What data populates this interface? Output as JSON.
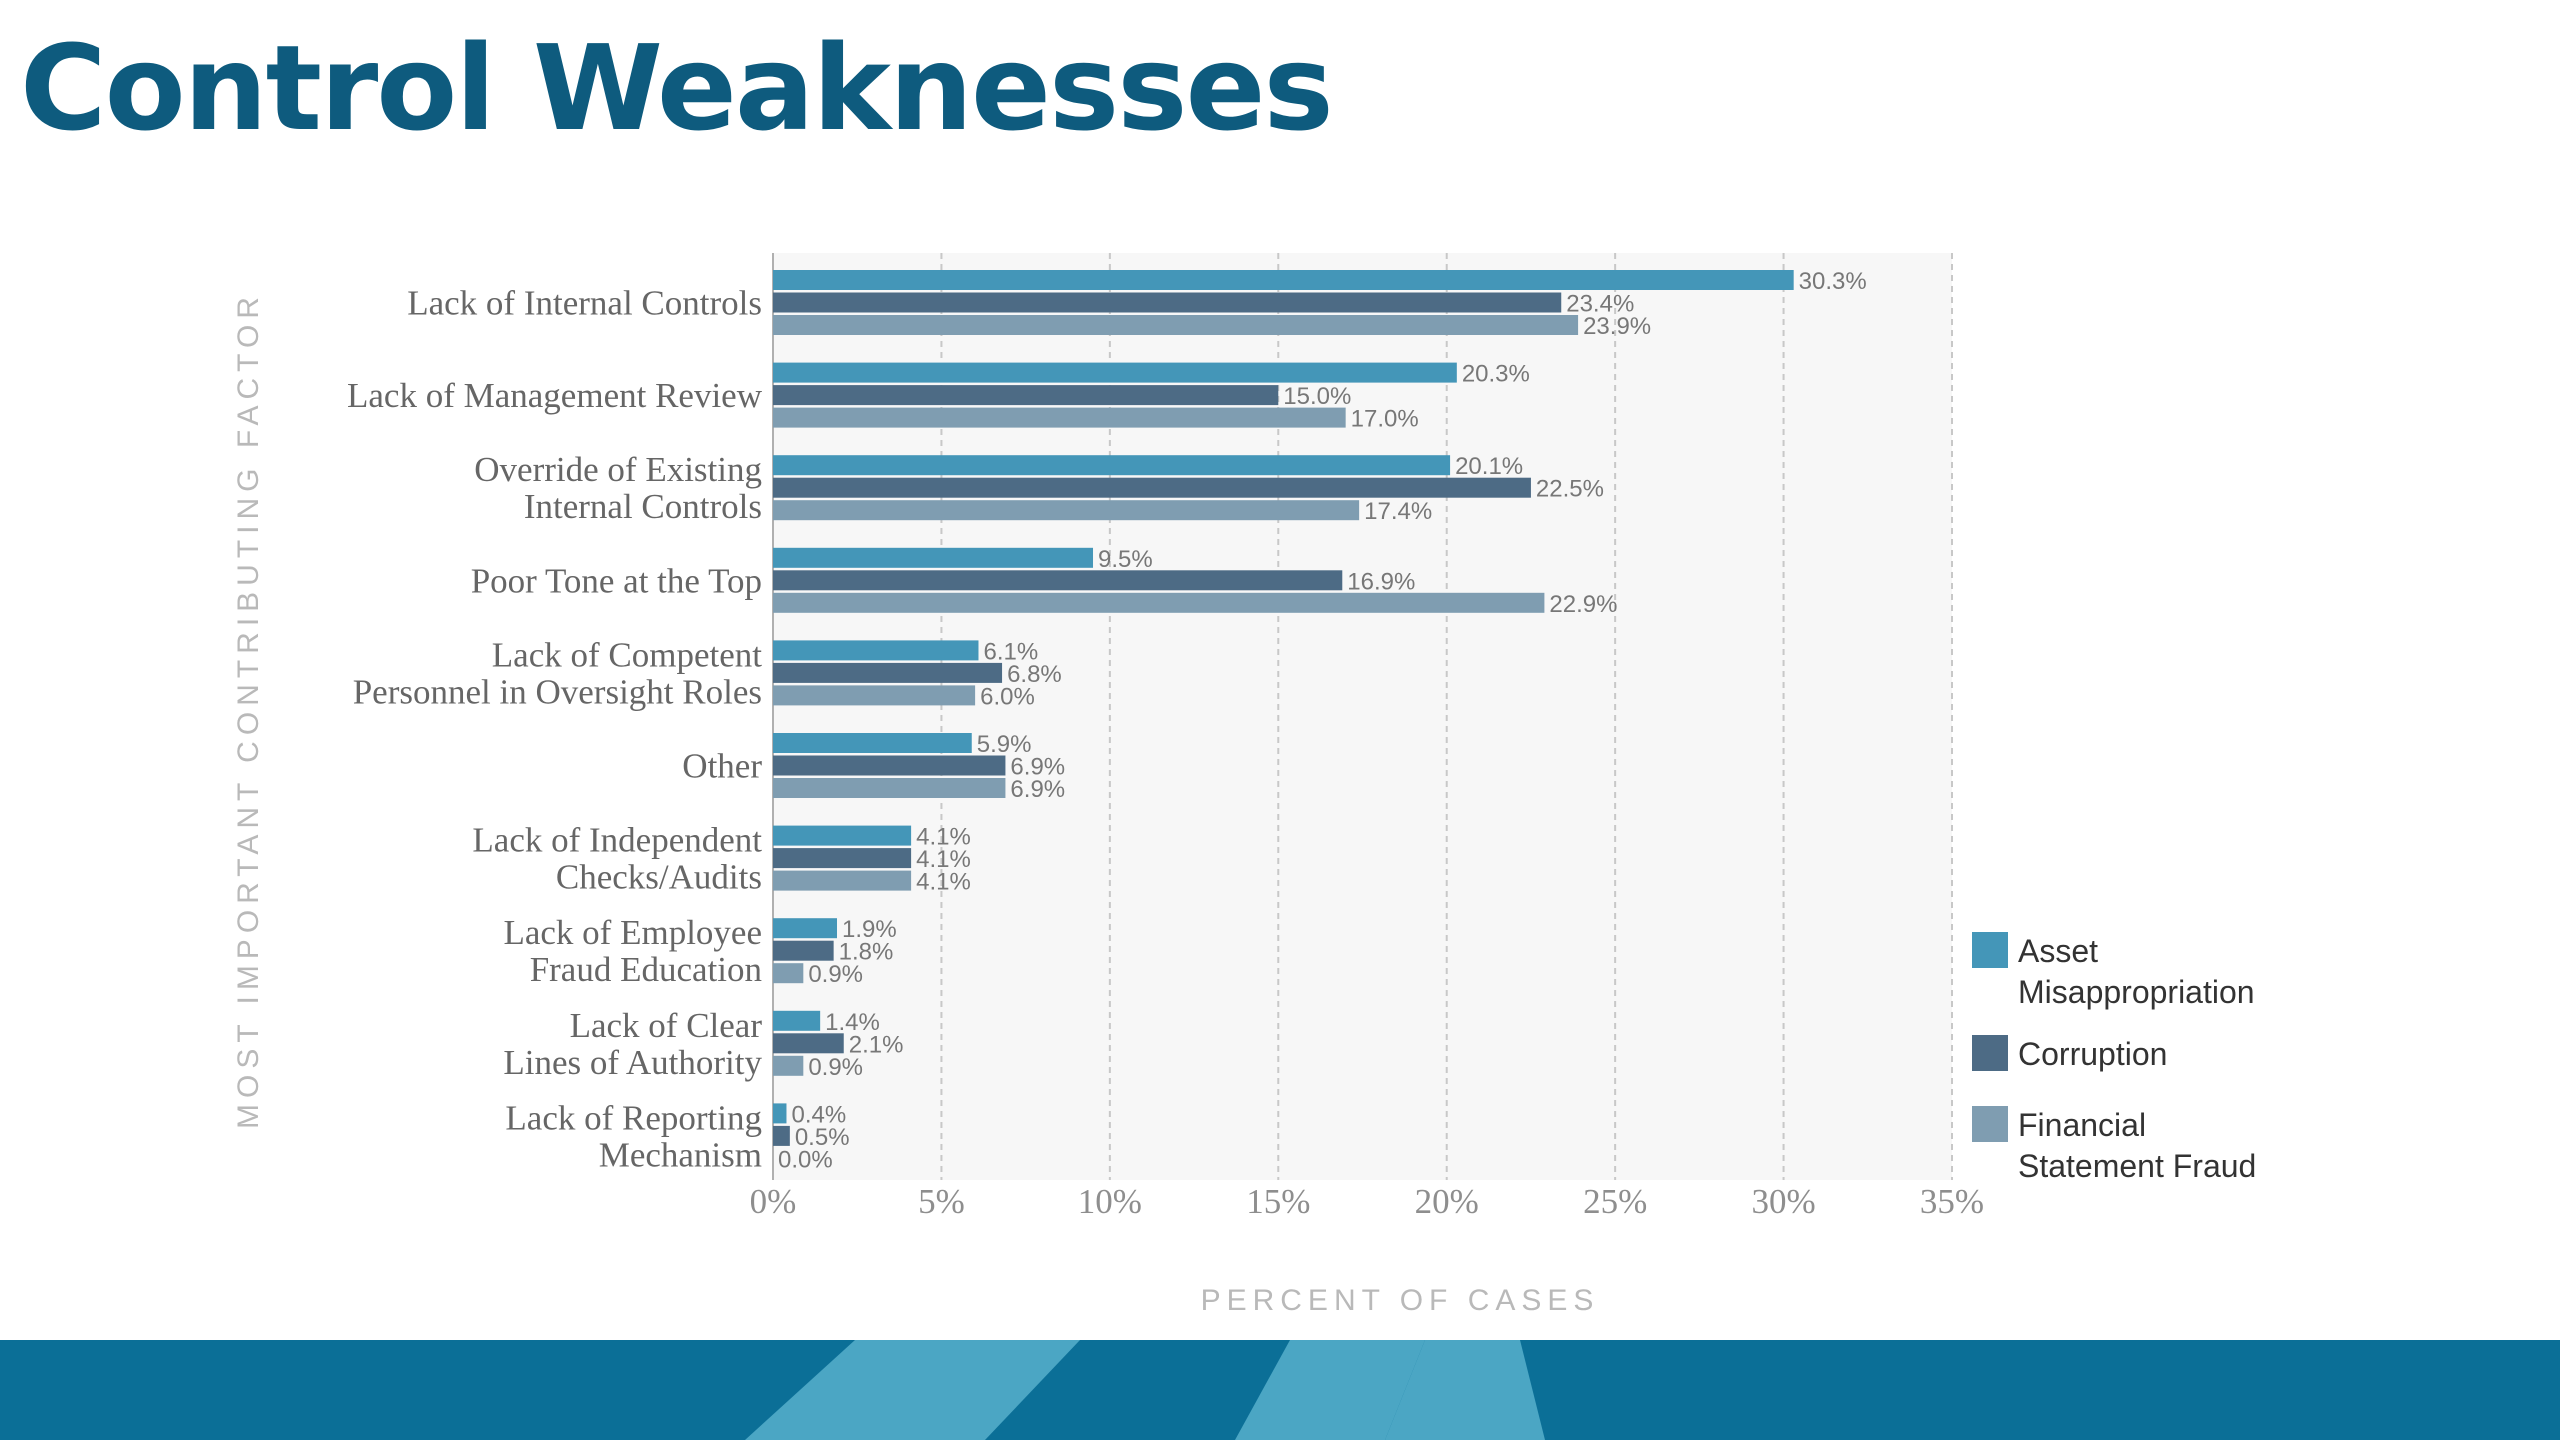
{
  "slide": {
    "title": "Control Weaknesses"
  },
  "colors": {
    "title": "#0e5b7e",
    "asset": "#4496b8",
    "corruption": "#4d6b85",
    "financial": "#7f9db1",
    "plot_bg": "#f7f7f7",
    "grid": "#c8c8c8",
    "footer_dark": "#0b6f97",
    "footer_light": "#4ba6c4"
  },
  "chart_data": {
    "type": "bar",
    "orientation": "horizontal",
    "xlabel": "PERCENT OF CASES",
    "ylabel": "MOST IMPORTANT CONTRIBUTING FACTOR",
    "xlim": [
      0,
      35
    ],
    "xticks": [
      "0%",
      "5%",
      "10%",
      "15%",
      "20%",
      "25%",
      "30%",
      "35%"
    ],
    "grid": true,
    "legend_position": "right",
    "categories": [
      [
        "Lack of Internal Controls"
      ],
      [
        "Lack of Management Review"
      ],
      [
        "Override of Existing",
        "Internal Controls"
      ],
      [
        "Poor Tone at the Top"
      ],
      [
        "Lack of Competent",
        "Personnel in Oversight Roles"
      ],
      [
        "Other"
      ],
      [
        "Lack of Independent",
        "Checks/Audits"
      ],
      [
        "Lack of Employee",
        "Fraud Education"
      ],
      [
        "Lack of Clear",
        "Lines of Authority"
      ],
      [
        "Lack of Reporting",
        "Mechanism"
      ]
    ],
    "series": [
      {
        "name": "Asset Misappropriation",
        "legend_lines": [
          "Asset",
          "Misappropriation"
        ],
        "color": "#4496b8",
        "values": [
          30.3,
          20.3,
          20.1,
          9.5,
          6.1,
          5.9,
          4.1,
          1.9,
          1.4,
          0.4
        ],
        "labels": [
          "30.3%",
          "20.3%",
          "20.1%",
          "9.5%",
          "6.1%",
          "5.9%",
          "4.1%",
          "1.9%",
          "1.4%",
          "0.4%"
        ]
      },
      {
        "name": "Corruption",
        "legend_lines": [
          "Corruption"
        ],
        "color": "#4d6b85",
        "values": [
          23.4,
          15.0,
          22.5,
          16.9,
          6.8,
          6.9,
          4.1,
          1.8,
          2.1,
          0.5
        ],
        "labels": [
          "23.4%",
          "15.0%",
          "22.5%",
          "16.9%",
          "6.8%",
          "6.9%",
          "4.1%",
          "1.8%",
          "2.1%",
          "0.5%"
        ]
      },
      {
        "name": "Financial Statement Fraud",
        "legend_lines": [
          "Financial",
          "Statement Fraud"
        ],
        "color": "#7f9db1",
        "values": [
          23.9,
          17.0,
          17.4,
          22.9,
          6.0,
          6.9,
          4.1,
          0.9,
          0.9,
          0.0
        ],
        "labels": [
          "23.9%",
          "17.0%",
          "17.4%",
          "22.9%",
          "6.0%",
          "6.9%",
          "4.1%",
          "0.9%",
          "0.9%",
          "0.0%"
        ]
      }
    ]
  }
}
